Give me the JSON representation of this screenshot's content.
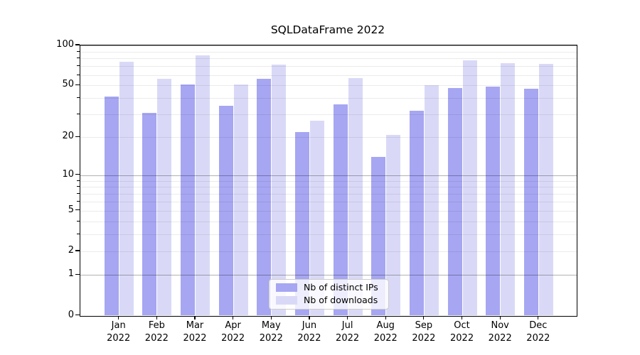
{
  "chart_data": {
    "type": "bar",
    "title": "SQLDataFrame 2022",
    "year": "2022",
    "months": [
      "Jan",
      "Feb",
      "Mar",
      "Apr",
      "May",
      "Jun",
      "Jul",
      "Aug",
      "Sep",
      "Oct",
      "Nov",
      "Dec"
    ],
    "categories": [
      "Jan 2022",
      "Feb 2022",
      "Mar 2022",
      "Apr 2022",
      "May 2022",
      "Jun 2022",
      "Jul 2022",
      "Aug 2022",
      "Sep 2022",
      "Oct 2022",
      "Nov 2022",
      "Dec 2022"
    ],
    "series": [
      {
        "name": "Nb of distinct IPs",
        "color": "#a6a6f2",
        "values": [
          41,
          31,
          51,
          35,
          56,
          22,
          36,
          14,
          32,
          48,
          49,
          47
        ]
      },
      {
        "name": "Nb of downloads",
        "color": "#d9d9f7",
        "values": [
          75,
          56,
          84,
          51,
          72,
          27,
          57,
          21,
          50,
          77,
          74,
          73
        ]
      }
    ],
    "yscale": "log1p",
    "ylim": [
      0,
      100
    ],
    "yticks": [
      100,
      50,
      20,
      10,
      5,
      2,
      1,
      0
    ],
    "major_gridlines": [
      1,
      10,
      100
    ],
    "minor_gridlines": [
      2,
      3,
      4,
      5,
      6,
      7,
      8,
      9,
      20,
      30,
      40,
      50,
      60,
      70,
      80,
      90
    ],
    "minor_tick_values": [
      3,
      4,
      6,
      7,
      8,
      9,
      30,
      40,
      60,
      70,
      80,
      90
    ],
    "grid": "both",
    "legend_position": "lower center"
  }
}
